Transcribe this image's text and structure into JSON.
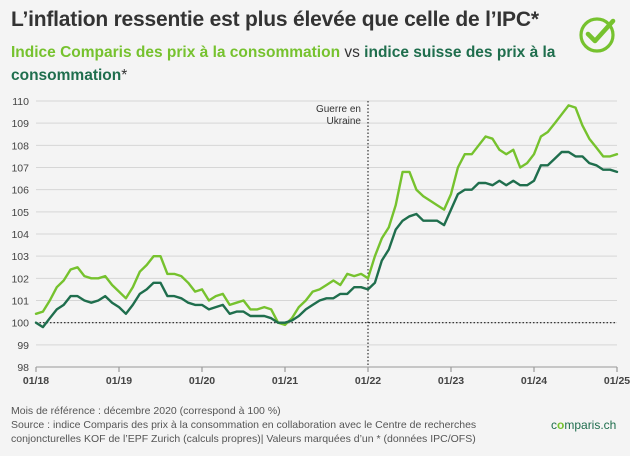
{
  "header": {
    "title": "L’inflation ressentie est plus élevée que celle de l’IPC*",
    "subtitle_green": "Indice Comparis des prix à la consommation",
    "subtitle_vs": " vs ",
    "subtitle_dark": "indice suisse des prix à la consommation",
    "subtitle_tail": "*"
  },
  "colors": {
    "comparis": "#76c22e",
    "ipc": "#1f6e4d",
    "grid": "#d6d6d6",
    "text": "#333333"
  },
  "logo_icon": "check-circle-icon",
  "chart_data": {
    "type": "line",
    "ylim": [
      98,
      110
    ],
    "yticks": [
      98,
      99,
      100,
      101,
      102,
      103,
      104,
      105,
      106,
      107,
      108,
      109,
      110
    ],
    "xlim": [
      "2018-01",
      "2025-01"
    ],
    "xticks": [
      {
        "date": "2018-01",
        "label": "01/18"
      },
      {
        "date": "2019-01",
        "label": "01/19"
      },
      {
        "date": "2020-01",
        "label": "01/20"
      },
      {
        "date": "2021-01",
        "label": "01/21"
      },
      {
        "date": "2022-01",
        "label": "01/22"
      },
      {
        "date": "2023-01",
        "label": "01/23"
      },
      {
        "date": "2024-01",
        "label": "01/24"
      },
      {
        "date": "2025-01",
        "label": "01/25"
      }
    ],
    "grid": "horizontal",
    "reference_line": {
      "y": 100
    },
    "annotation": {
      "date": "2022-01",
      "lines": [
        "Guerre en",
        "Ukraine"
      ]
    },
    "series": [
      {
        "key": "comparis",
        "color": "#76c22e",
        "points": [
          [
            "2018-01",
            100.4
          ],
          [
            "2018-02",
            100.5
          ],
          [
            "2018-03",
            101.0
          ],
          [
            "2018-04",
            101.6
          ],
          [
            "2018-05",
            101.9
          ],
          [
            "2018-06",
            102.4
          ],
          [
            "2018-07",
            102.5
          ],
          [
            "2018-08",
            102.1
          ],
          [
            "2018-09",
            102.0
          ],
          [
            "2018-10",
            102.0
          ],
          [
            "2018-11",
            102.1
          ],
          [
            "2018-12",
            101.7
          ],
          [
            "2019-01",
            101.4
          ],
          [
            "2019-02",
            101.1
          ],
          [
            "2019-03",
            101.6
          ],
          [
            "2019-04",
            102.3
          ],
          [
            "2019-05",
            102.6
          ],
          [
            "2019-06",
            103.0
          ],
          [
            "2019-07",
            103.0
          ],
          [
            "2019-08",
            102.2
          ],
          [
            "2019-09",
            102.2
          ],
          [
            "2019-10",
            102.1
          ],
          [
            "2019-11",
            101.8
          ],
          [
            "2019-12",
            101.4
          ],
          [
            "2020-01",
            101.5
          ],
          [
            "2020-02",
            101.0
          ],
          [
            "2020-03",
            101.2
          ],
          [
            "2020-04",
            101.3
          ],
          [
            "2020-05",
            100.8
          ],
          [
            "2020-06",
            100.9
          ],
          [
            "2020-07",
            101.0
          ],
          [
            "2020-08",
            100.6
          ],
          [
            "2020-09",
            100.6
          ],
          [
            "2020-10",
            100.7
          ],
          [
            "2020-11",
            100.6
          ],
          [
            "2020-12",
            100.0
          ],
          [
            "2021-01",
            99.9
          ],
          [
            "2021-02",
            100.2
          ],
          [
            "2021-03",
            100.7
          ],
          [
            "2021-04",
            101.0
          ],
          [
            "2021-05",
            101.4
          ],
          [
            "2021-06",
            101.5
          ],
          [
            "2021-07",
            101.7
          ],
          [
            "2021-08",
            101.9
          ],
          [
            "2021-09",
            101.7
          ],
          [
            "2021-10",
            102.2
          ],
          [
            "2021-11",
            102.1
          ],
          [
            "2021-12",
            102.2
          ],
          [
            "2022-01",
            102.0
          ],
          [
            "2022-02",
            103.0
          ],
          [
            "2022-03",
            103.8
          ],
          [
            "2022-04",
            104.3
          ],
          [
            "2022-05",
            105.3
          ],
          [
            "2022-06",
            106.8
          ],
          [
            "2022-07",
            106.8
          ],
          [
            "2022-08",
            106.0
          ],
          [
            "2022-09",
            105.7
          ],
          [
            "2022-10",
            105.5
          ],
          [
            "2022-11",
            105.3
          ],
          [
            "2022-12",
            105.1
          ],
          [
            "2023-01",
            105.8
          ],
          [
            "2023-02",
            107.0
          ],
          [
            "2023-03",
            107.6
          ],
          [
            "2023-04",
            107.6
          ],
          [
            "2023-05",
            108.0
          ],
          [
            "2023-06",
            108.4
          ],
          [
            "2023-07",
            108.3
          ],
          [
            "2023-08",
            107.8
          ],
          [
            "2023-09",
            107.6
          ],
          [
            "2023-10",
            107.8
          ],
          [
            "2023-11",
            107.0
          ],
          [
            "2023-12",
            107.2
          ],
          [
            "2024-01",
            107.6
          ],
          [
            "2024-02",
            108.4
          ],
          [
            "2024-03",
            108.6
          ],
          [
            "2024-04",
            109.0
          ],
          [
            "2024-05",
            109.4
          ],
          [
            "2024-06",
            109.8
          ],
          [
            "2024-07",
            109.7
          ],
          [
            "2024-08",
            108.9
          ],
          [
            "2024-09",
            108.3
          ],
          [
            "2024-10",
            107.9
          ],
          [
            "2024-11",
            107.5
          ],
          [
            "2024-12",
            107.5
          ],
          [
            "2025-01",
            107.6
          ]
        ]
      },
      {
        "key": "ipc",
        "color": "#1f6e4d",
        "points": [
          [
            "2018-01",
            100.0
          ],
          [
            "2018-02",
            99.8
          ],
          [
            "2018-03",
            100.2
          ],
          [
            "2018-04",
            100.6
          ],
          [
            "2018-05",
            100.8
          ],
          [
            "2018-06",
            101.2
          ],
          [
            "2018-07",
            101.2
          ],
          [
            "2018-08",
            101.0
          ],
          [
            "2018-09",
            100.9
          ],
          [
            "2018-10",
            101.0
          ],
          [
            "2018-11",
            101.2
          ],
          [
            "2018-12",
            100.9
          ],
          [
            "2019-01",
            100.7
          ],
          [
            "2019-02",
            100.4
          ],
          [
            "2019-03",
            100.8
          ],
          [
            "2019-04",
            101.3
          ],
          [
            "2019-05",
            101.5
          ],
          [
            "2019-06",
            101.8
          ],
          [
            "2019-07",
            101.8
          ],
          [
            "2019-08",
            101.2
          ],
          [
            "2019-09",
            101.2
          ],
          [
            "2019-10",
            101.1
          ],
          [
            "2019-11",
            100.9
          ],
          [
            "2019-12",
            100.8
          ],
          [
            "2020-01",
            100.8
          ],
          [
            "2020-02",
            100.6
          ],
          [
            "2020-03",
            100.7
          ],
          [
            "2020-04",
            100.8
          ],
          [
            "2020-05",
            100.4
          ],
          [
            "2020-06",
            100.5
          ],
          [
            "2020-07",
            100.5
          ],
          [
            "2020-08",
            100.3
          ],
          [
            "2020-09",
            100.3
          ],
          [
            "2020-10",
            100.3
          ],
          [
            "2020-11",
            100.2
          ],
          [
            "2020-12",
            100.0
          ],
          [
            "2021-01",
            100.0
          ],
          [
            "2021-02",
            100.1
          ],
          [
            "2021-03",
            100.3
          ],
          [
            "2021-04",
            100.6
          ],
          [
            "2021-05",
            100.8
          ],
          [
            "2021-06",
            101.0
          ],
          [
            "2021-07",
            101.1
          ],
          [
            "2021-08",
            101.1
          ],
          [
            "2021-09",
            101.3
          ],
          [
            "2021-10",
            101.3
          ],
          [
            "2021-11",
            101.6
          ],
          [
            "2021-12",
            101.6
          ],
          [
            "2022-01",
            101.5
          ],
          [
            "2022-02",
            101.8
          ],
          [
            "2022-03",
            102.8
          ],
          [
            "2022-04",
            103.3
          ],
          [
            "2022-05",
            104.2
          ],
          [
            "2022-06",
            104.6
          ],
          [
            "2022-07",
            104.8
          ],
          [
            "2022-08",
            104.9
          ],
          [
            "2022-09",
            104.6
          ],
          [
            "2022-10",
            104.6
          ],
          [
            "2022-11",
            104.6
          ],
          [
            "2022-12",
            104.4
          ],
          [
            "2023-01",
            105.1
          ],
          [
            "2023-02",
            105.8
          ],
          [
            "2023-03",
            106.0
          ],
          [
            "2023-04",
            106.0
          ],
          [
            "2023-05",
            106.3
          ],
          [
            "2023-06",
            106.3
          ],
          [
            "2023-07",
            106.2
          ],
          [
            "2023-08",
            106.4
          ],
          [
            "2023-09",
            106.2
          ],
          [
            "2023-10",
            106.4
          ],
          [
            "2023-11",
            106.2
          ],
          [
            "2023-12",
            106.2
          ],
          [
            "2024-01",
            106.4
          ],
          [
            "2024-02",
            107.1
          ],
          [
            "2024-03",
            107.1
          ],
          [
            "2024-04",
            107.4
          ],
          [
            "2024-05",
            107.7
          ],
          [
            "2024-06",
            107.7
          ],
          [
            "2024-07",
            107.5
          ],
          [
            "2024-08",
            107.5
          ],
          [
            "2024-09",
            107.2
          ],
          [
            "2024-10",
            107.1
          ],
          [
            "2024-11",
            106.9
          ],
          [
            "2024-12",
            106.9
          ],
          [
            "2025-01",
            106.8
          ]
        ]
      }
    ]
  },
  "footer": {
    "reference_note": "Mois de référence : décembre 2020 (correspond à 100 %)",
    "source": "Source : indice Comparis des prix à la consommation en collaboration avec le Centre de recherches conjoncturelles KOF de l’EPF Zurich (calculs propres)| Valeurs marquées d’un * (données IPC/OFS)",
    "brand_prefix": "c",
    "brand_o": "o",
    "brand_suffix": "mparis.ch"
  }
}
